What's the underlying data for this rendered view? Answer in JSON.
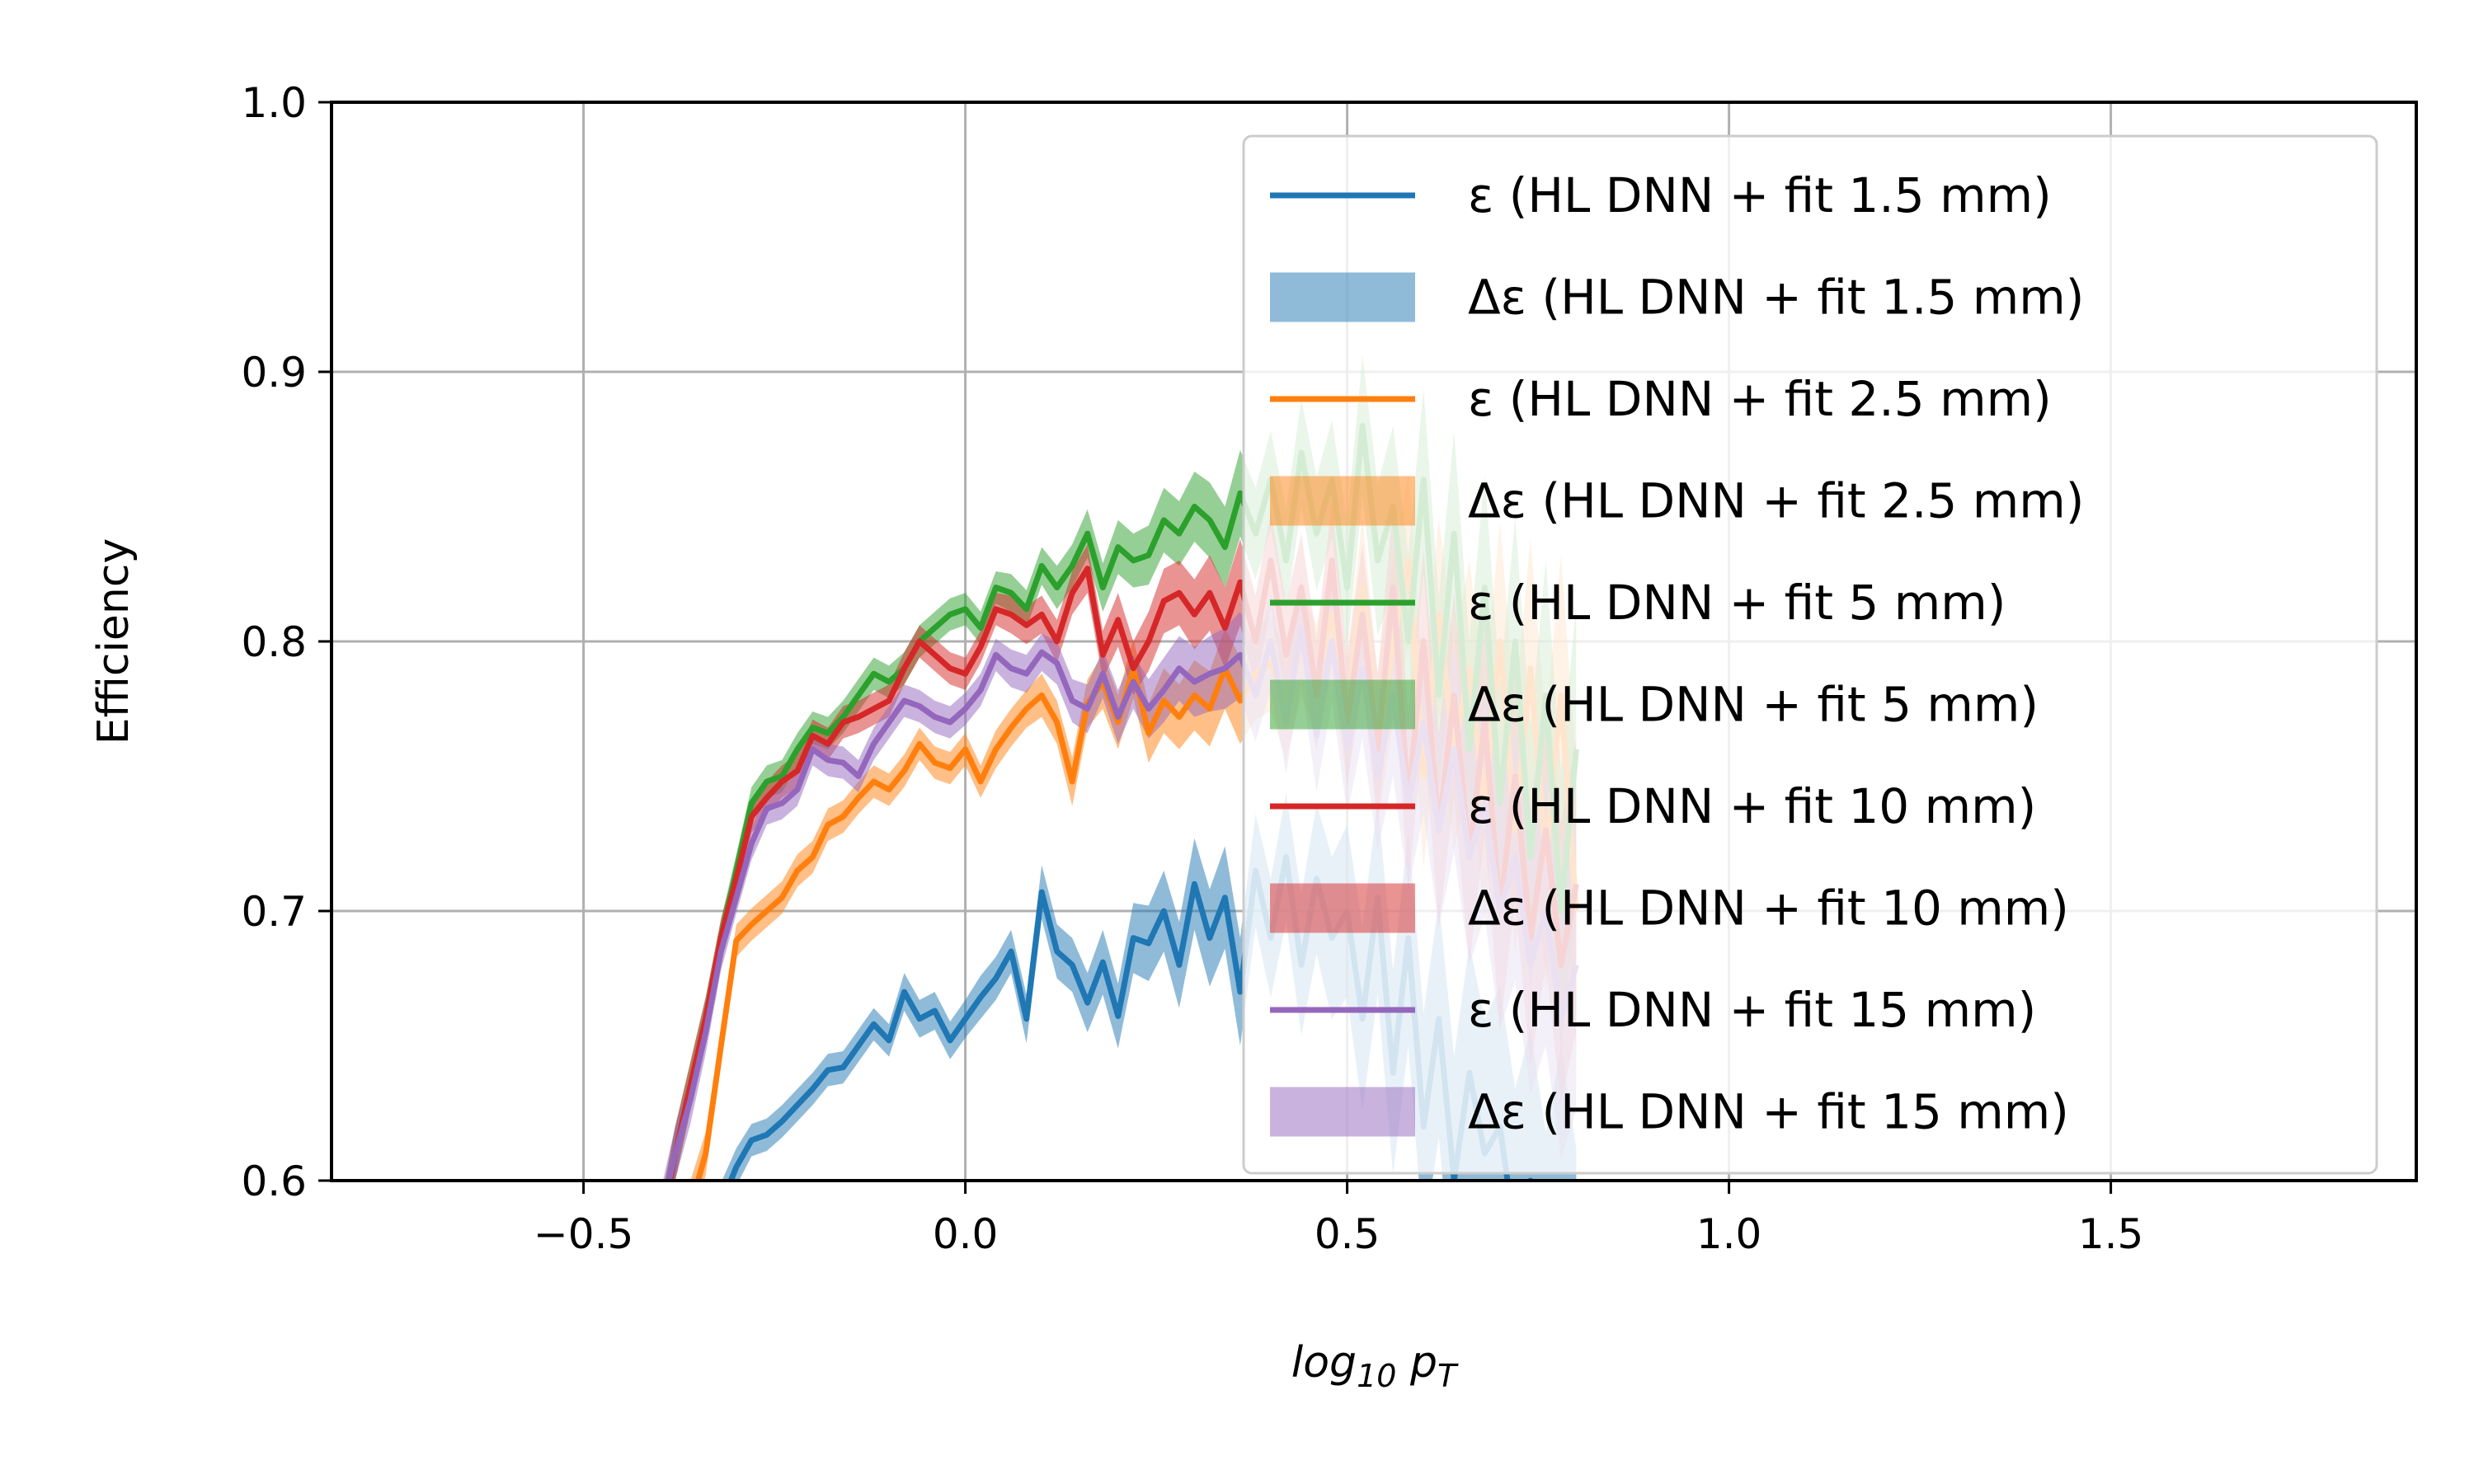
{
  "chart_data": {
    "type": "line",
    "xlabel_parts": {
      "base": "log",
      "sub": "10",
      "var": " p",
      "var_sub": "T"
    },
    "ylabel": "Efficiency",
    "xlim": [
      -0.83,
      1.9
    ],
    "ylim": [
      0.6,
      1.0
    ],
    "x_ticks": [
      {
        "value": -0.5,
        "label": "−0.5"
      },
      {
        "value": 0.0,
        "label": "0.0"
      },
      {
        "value": 0.5,
        "label": "0.5"
      },
      {
        "value": 1.0,
        "label": "1.0"
      },
      {
        "value": 1.5,
        "label": "1.5"
      }
    ],
    "y_ticks": [
      {
        "value": 0.6,
        "label": "0.6"
      },
      {
        "value": 0.7,
        "label": "0.7"
      },
      {
        "value": 0.8,
        "label": "0.8"
      },
      {
        "value": 0.9,
        "label": "0.9"
      },
      {
        "value": 1.0,
        "label": "1.0"
      }
    ],
    "grid": true,
    "legend_position": "upper-right",
    "series": [
      {
        "name": "ε (HL DNN + fit 1.5 mm)",
        "band_name": "Δε (HL DNN + fit 1.5 mm)",
        "color": "#1f77b4",
        "x": [
          -0.4,
          -0.35,
          -0.3,
          -0.28,
          -0.26,
          -0.24,
          -0.22,
          -0.2,
          -0.18,
          -0.16,
          -0.14,
          -0.12,
          -0.1,
          -0.08,
          -0.06,
          -0.04,
          -0.02,
          0.0,
          0.02,
          0.04,
          0.06,
          0.08,
          0.1,
          0.12,
          0.14,
          0.16,
          0.18,
          0.2,
          0.22,
          0.24,
          0.26,
          0.28,
          0.3,
          0.32,
          0.34,
          0.36,
          0.38,
          0.4,
          0.42,
          0.44,
          0.46,
          0.48,
          0.5,
          0.52,
          0.54,
          0.56,
          0.58,
          0.6,
          0.62,
          0.64,
          0.66,
          0.68,
          0.7,
          0.72,
          0.74,
          0.76,
          0.78,
          0.8
        ],
        "y": [
          0.53,
          0.57,
          0.605,
          0.615,
          0.617,
          0.622,
          0.628,
          0.634,
          0.641,
          0.642,
          0.65,
          0.658,
          0.652,
          0.67,
          0.66,
          0.663,
          0.652,
          0.66,
          0.668,
          0.675,
          0.685,
          0.66,
          0.707,
          0.685,
          0.68,
          0.666,
          0.681,
          0.661,
          0.69,
          0.688,
          0.7,
          0.68,
          0.71,
          0.69,
          0.705,
          0.67,
          0.715,
          0.69,
          0.72,
          0.68,
          0.712,
          0.69,
          0.7,
          0.66,
          0.705,
          0.64,
          0.69,
          0.62,
          0.66,
          0.6,
          0.64,
          0.61,
          0.62,
          0.58,
          0.6,
          0.56,
          0.59,
          0.55
        ],
        "err": [
          0.01,
          0.01,
          0.007,
          0.006,
          0.006,
          0.006,
          0.006,
          0.006,
          0.006,
          0.006,
          0.006,
          0.006,
          0.006,
          0.007,
          0.007,
          0.007,
          0.007,
          0.007,
          0.008,
          0.008,
          0.008,
          0.009,
          0.01,
          0.01,
          0.01,
          0.011,
          0.012,
          0.012,
          0.013,
          0.014,
          0.015,
          0.016,
          0.017,
          0.018,
          0.019,
          0.02,
          0.021,
          0.022,
          0.024,
          0.026,
          0.028,
          0.03,
          0.032,
          0.034,
          0.036,
          0.038,
          0.04,
          0.042,
          0.044,
          0.046,
          0.048,
          0.05,
          0.052,
          0.054,
          0.056,
          0.058,
          0.06,
          0.062
        ]
      },
      {
        "name": "ε (HL DNN + fit 2.5 mm)",
        "band_name": "Δε (HL DNN + fit 2.5 mm)",
        "color": "#ff7f0e",
        "x": [
          -0.4,
          -0.36,
          -0.34,
          -0.32,
          -0.3,
          -0.28,
          -0.26,
          -0.24,
          -0.22,
          -0.2,
          -0.18,
          -0.16,
          -0.14,
          -0.12,
          -0.1,
          -0.08,
          -0.06,
          -0.04,
          -0.02,
          0.0,
          0.02,
          0.04,
          0.06,
          0.08,
          0.1,
          0.12,
          0.14,
          0.16,
          0.18,
          0.2,
          0.22,
          0.24,
          0.26,
          0.28,
          0.3,
          0.32,
          0.34,
          0.36,
          0.38,
          0.4,
          0.42,
          0.44,
          0.46,
          0.48,
          0.5,
          0.52,
          0.54,
          0.56,
          0.58,
          0.6,
          0.62,
          0.64,
          0.66,
          0.68,
          0.7,
          0.72,
          0.74,
          0.76,
          0.78,
          0.8
        ],
        "y": [
          0.55,
          0.59,
          0.61,
          0.65,
          0.689,
          0.695,
          0.7,
          0.705,
          0.715,
          0.72,
          0.732,
          0.735,
          0.742,
          0.748,
          0.745,
          0.752,
          0.762,
          0.755,
          0.753,
          0.76,
          0.748,
          0.76,
          0.768,
          0.775,
          0.78,
          0.77,
          0.748,
          0.777,
          0.785,
          0.77,
          0.79,
          0.766,
          0.778,
          0.772,
          0.78,
          0.775,
          0.79,
          0.778,
          0.788,
          0.792,
          0.775,
          0.8,
          0.785,
          0.81,
          0.77,
          0.82,
          0.76,
          0.8,
          0.83,
          0.75,
          0.81,
          0.76,
          0.79,
          0.74,
          0.8,
          0.73,
          0.79,
          0.72,
          0.78,
          0.7
        ],
        "err": [
          0.01,
          0.01,
          0.008,
          0.007,
          0.006,
          0.006,
          0.006,
          0.006,
          0.006,
          0.006,
          0.006,
          0.006,
          0.006,
          0.006,
          0.006,
          0.006,
          0.006,
          0.006,
          0.006,
          0.006,
          0.006,
          0.007,
          0.007,
          0.007,
          0.008,
          0.008,
          0.009,
          0.009,
          0.01,
          0.01,
          0.011,
          0.011,
          0.012,
          0.012,
          0.013,
          0.014,
          0.015,
          0.016,
          0.017,
          0.018,
          0.019,
          0.02,
          0.021,
          0.022,
          0.024,
          0.026,
          0.028,
          0.03,
          0.032,
          0.034,
          0.036,
          0.038,
          0.04,
          0.042,
          0.044,
          0.046,
          0.048,
          0.05,
          0.052,
          0.054
        ]
      },
      {
        "name": "ε (HL DNN + fit 5 mm)",
        "band_name": "Δε (HL DNN + fit 5 mm)",
        "color": "#2ca02c",
        "x": [
          -0.4,
          -0.38,
          -0.36,
          -0.34,
          -0.32,
          -0.3,
          -0.28,
          -0.26,
          -0.24,
          -0.22,
          -0.2,
          -0.18,
          -0.16,
          -0.14,
          -0.12,
          -0.1,
          -0.08,
          -0.06,
          -0.04,
          -0.02,
          0.0,
          0.02,
          0.04,
          0.06,
          0.08,
          0.1,
          0.12,
          0.14,
          0.16,
          0.18,
          0.2,
          0.22,
          0.24,
          0.26,
          0.28,
          0.3,
          0.32,
          0.34,
          0.36,
          0.38,
          0.4,
          0.42,
          0.44,
          0.46,
          0.48,
          0.5,
          0.52,
          0.54,
          0.56,
          0.58,
          0.6,
          0.62,
          0.64,
          0.66,
          0.68,
          0.7,
          0.72,
          0.74,
          0.76,
          0.78,
          0.8
        ],
        "y": [
          0.58,
          0.61,
          0.635,
          0.66,
          0.69,
          0.715,
          0.74,
          0.748,
          0.75,
          0.76,
          0.768,
          0.766,
          0.772,
          0.78,
          0.788,
          0.785,
          0.79,
          0.8,
          0.805,
          0.81,
          0.812,
          0.805,
          0.82,
          0.818,
          0.812,
          0.828,
          0.82,
          0.828,
          0.84,
          0.82,
          0.835,
          0.83,
          0.832,
          0.845,
          0.84,
          0.85,
          0.845,
          0.835,
          0.855,
          0.84,
          0.86,
          0.83,
          0.87,
          0.84,
          0.86,
          0.82,
          0.88,
          0.83,
          0.85,
          0.8,
          0.86,
          0.78,
          0.84,
          0.76,
          0.82,
          0.74,
          0.8,
          0.72,
          0.78,
          0.7,
          0.76
        ],
        "err": [
          0.01,
          0.01,
          0.009,
          0.008,
          0.007,
          0.006,
          0.006,
          0.006,
          0.006,
          0.006,
          0.006,
          0.006,
          0.006,
          0.006,
          0.006,
          0.006,
          0.006,
          0.006,
          0.006,
          0.006,
          0.006,
          0.006,
          0.006,
          0.007,
          0.007,
          0.007,
          0.008,
          0.008,
          0.009,
          0.009,
          0.01,
          0.01,
          0.011,
          0.012,
          0.012,
          0.013,
          0.014,
          0.015,
          0.016,
          0.017,
          0.018,
          0.019,
          0.02,
          0.021,
          0.022,
          0.024,
          0.026,
          0.028,
          0.03,
          0.032,
          0.034,
          0.036,
          0.038,
          0.04,
          0.042,
          0.044,
          0.046,
          0.048,
          0.05,
          0.052,
          0.054
        ]
      },
      {
        "name": "ε (HL DNN + fit 10 mm)",
        "band_name": "Δε (HL DNN + fit 10 mm)",
        "color": "#d62728",
        "x": [
          -0.4,
          -0.38,
          -0.36,
          -0.34,
          -0.32,
          -0.3,
          -0.28,
          -0.26,
          -0.24,
          -0.22,
          -0.2,
          -0.18,
          -0.16,
          -0.14,
          -0.12,
          -0.1,
          -0.08,
          -0.06,
          -0.04,
          -0.02,
          0.0,
          0.02,
          0.04,
          0.06,
          0.08,
          0.1,
          0.12,
          0.14,
          0.16,
          0.18,
          0.2,
          0.22,
          0.24,
          0.26,
          0.28,
          0.3,
          0.32,
          0.34,
          0.36,
          0.38,
          0.4,
          0.42,
          0.44,
          0.46,
          0.48,
          0.5,
          0.52,
          0.54,
          0.56,
          0.58,
          0.6,
          0.62,
          0.64,
          0.66,
          0.68,
          0.7,
          0.72,
          0.74,
          0.76,
          0.78,
          0.8
        ],
        "y": [
          0.58,
          0.61,
          0.635,
          0.66,
          0.69,
          0.712,
          0.735,
          0.742,
          0.748,
          0.752,
          0.765,
          0.762,
          0.77,
          0.772,
          0.775,
          0.778,
          0.79,
          0.8,
          0.795,
          0.79,
          0.788,
          0.798,
          0.812,
          0.81,
          0.806,
          0.81,
          0.8,
          0.818,
          0.827,
          0.795,
          0.808,
          0.79,
          0.8,
          0.815,
          0.818,
          0.81,
          0.818,
          0.805,
          0.822,
          0.8,
          0.83,
          0.795,
          0.82,
          0.78,
          0.83,
          0.77,
          0.81,
          0.76,
          0.82,
          0.74,
          0.8,
          0.73,
          0.78,
          0.72,
          0.77,
          0.7,
          0.75,
          0.69,
          0.73,
          0.68,
          0.71
        ],
        "err": [
          0.01,
          0.01,
          0.009,
          0.008,
          0.007,
          0.006,
          0.006,
          0.006,
          0.006,
          0.006,
          0.006,
          0.006,
          0.006,
          0.006,
          0.006,
          0.006,
          0.006,
          0.006,
          0.006,
          0.006,
          0.006,
          0.006,
          0.006,
          0.007,
          0.007,
          0.007,
          0.008,
          0.008,
          0.009,
          0.009,
          0.01,
          0.01,
          0.011,
          0.012,
          0.012,
          0.013,
          0.014,
          0.015,
          0.016,
          0.017,
          0.018,
          0.019,
          0.02,
          0.021,
          0.022,
          0.024,
          0.026,
          0.028,
          0.03,
          0.032,
          0.034,
          0.036,
          0.038,
          0.04,
          0.042,
          0.044,
          0.046,
          0.048,
          0.05,
          0.052,
          0.054
        ]
      },
      {
        "name": "ε (HL DNN + fit 15 mm)",
        "band_name": "Δε (HL DNN + fit 15 mm)",
        "color": "#9467bd",
        "x": [
          -0.4,
          -0.38,
          -0.36,
          -0.34,
          -0.32,
          -0.3,
          -0.28,
          -0.26,
          -0.24,
          -0.22,
          -0.2,
          -0.18,
          -0.16,
          -0.14,
          -0.12,
          -0.1,
          -0.08,
          -0.06,
          -0.04,
          -0.02,
          0.0,
          0.02,
          0.04,
          0.06,
          0.08,
          0.1,
          0.12,
          0.14,
          0.16,
          0.18,
          0.2,
          0.22,
          0.24,
          0.26,
          0.28,
          0.3,
          0.32,
          0.34,
          0.36,
          0.38,
          0.4,
          0.42,
          0.44,
          0.46,
          0.48,
          0.5,
          0.52,
          0.54,
          0.56,
          0.58,
          0.6,
          0.62,
          0.64,
          0.66,
          0.68,
          0.7,
          0.72,
          0.74,
          0.76,
          0.78,
          0.8
        ],
        "y": [
          0.585,
          0.61,
          0.63,
          0.655,
          0.685,
          0.705,
          0.725,
          0.738,
          0.74,
          0.745,
          0.76,
          0.756,
          0.755,
          0.75,
          0.762,
          0.77,
          0.778,
          0.776,
          0.772,
          0.77,
          0.775,
          0.782,
          0.795,
          0.79,
          0.788,
          0.796,
          0.792,
          0.778,
          0.775,
          0.788,
          0.772,
          0.785,
          0.775,
          0.782,
          0.79,
          0.785,
          0.788,
          0.79,
          0.795,
          0.78,
          0.8,
          0.77,
          0.805,
          0.765,
          0.8,
          0.76,
          0.79,
          0.75,
          0.78,
          0.74,
          0.77,
          0.73,
          0.76,
          0.72,
          0.74,
          0.7,
          0.72,
          0.68,
          0.7,
          0.66,
          0.68
        ],
        "err": [
          0.01,
          0.01,
          0.009,
          0.008,
          0.007,
          0.006,
          0.006,
          0.006,
          0.006,
          0.006,
          0.006,
          0.006,
          0.006,
          0.006,
          0.006,
          0.006,
          0.006,
          0.006,
          0.006,
          0.006,
          0.006,
          0.006,
          0.006,
          0.007,
          0.007,
          0.007,
          0.008,
          0.008,
          0.009,
          0.009,
          0.01,
          0.01,
          0.011,
          0.012,
          0.012,
          0.013,
          0.014,
          0.015,
          0.016,
          0.017,
          0.018,
          0.019,
          0.02,
          0.021,
          0.022,
          0.024,
          0.026,
          0.028,
          0.03,
          0.032,
          0.034,
          0.036,
          0.038,
          0.04,
          0.042,
          0.044,
          0.046,
          0.048,
          0.05,
          0.052,
          0.054
        ]
      }
    ]
  }
}
